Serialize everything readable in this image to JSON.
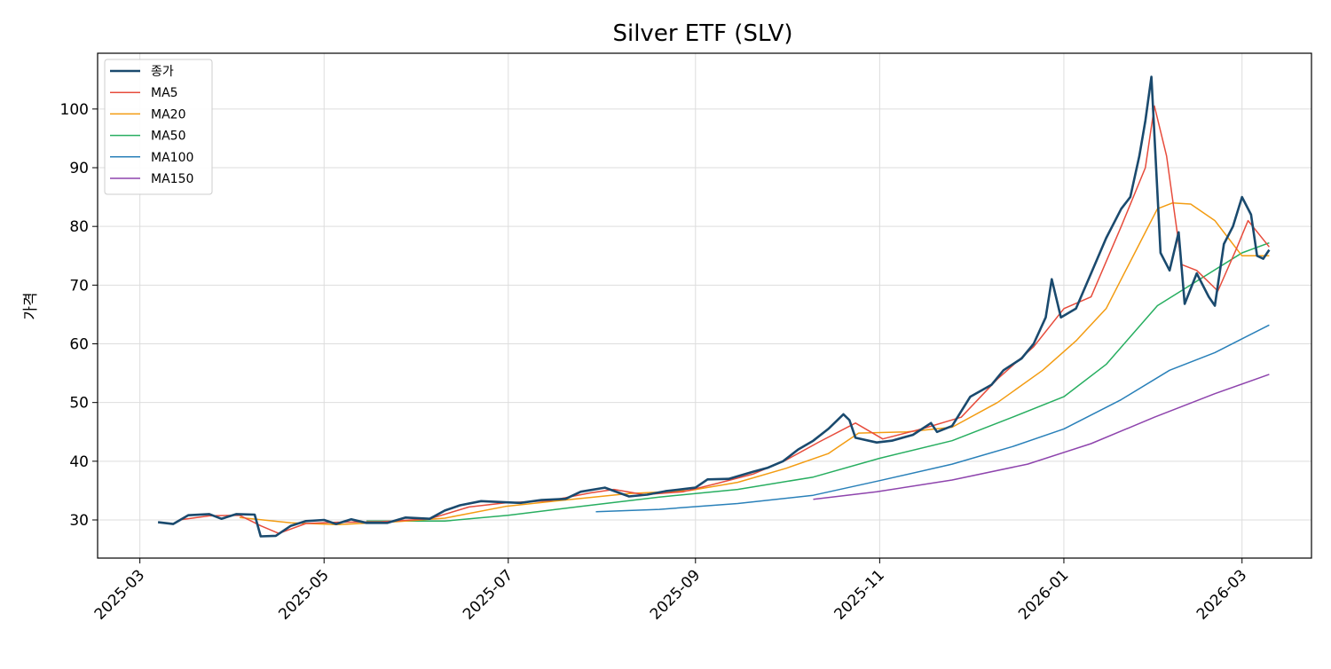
{
  "chart_data": {
    "type": "line",
    "title": "Silver ETF (SLV)",
    "xlabel": "",
    "ylabel": "가격",
    "x_ticks": [
      "2025-03",
      "2025-05",
      "2025-07",
      "2025-09",
      "2025-11",
      "2026-01",
      "2026-03"
    ],
    "y_ticks": [
      30,
      40,
      50,
      60,
      70,
      80,
      90,
      100
    ],
    "xlim": [
      "2025-02-15",
      "2026-03-24"
    ],
    "ylim": [
      23.5,
      109.5
    ],
    "grid": true,
    "legend_position": "top-left",
    "colors": {
      "close": "#1a4a6e",
      "ma5": "#e74c3c",
      "ma20": "#f39c12",
      "ma50": "#27ae60",
      "ma100": "#2980b9",
      "ma150": "#8e44ad",
      "grid": "#dddddd"
    },
    "series": [
      {
        "name": "종가",
        "key": "close",
        "points": [
          [
            "2025-03-07",
            29.6
          ],
          [
            "2025-03-12",
            29.3
          ],
          [
            "2025-03-17",
            30.8
          ],
          [
            "2025-03-24",
            31.0
          ],
          [
            "2025-03-28",
            30.2
          ],
          [
            "2025-04-02",
            31.0
          ],
          [
            "2025-04-08",
            30.9
          ],
          [
            "2025-04-10",
            27.2
          ],
          [
            "2025-04-15",
            27.3
          ],
          [
            "2025-04-20",
            29.0
          ],
          [
            "2025-04-25",
            29.8
          ],
          [
            "2025-05-01",
            30.0
          ],
          [
            "2025-05-05",
            29.3
          ],
          [
            "2025-05-10",
            30.1
          ],
          [
            "2025-05-15",
            29.5
          ],
          [
            "2025-05-22",
            29.5
          ],
          [
            "2025-05-28",
            30.4
          ],
          [
            "2025-06-05",
            30.2
          ],
          [
            "2025-06-10",
            31.6
          ],
          [
            "2025-06-15",
            32.5
          ],
          [
            "2025-06-22",
            33.2
          ],
          [
            "2025-06-30",
            33.0
          ],
          [
            "2025-07-05",
            32.9
          ],
          [
            "2025-07-12",
            33.4
          ],
          [
            "2025-07-20",
            33.6
          ],
          [
            "2025-07-25",
            34.8
          ],
          [
            "2025-08-02",
            35.5
          ],
          [
            "2025-08-10",
            34.0
          ],
          [
            "2025-08-16",
            34.3
          ],
          [
            "2025-08-22",
            34.9
          ],
          [
            "2025-09-01",
            35.5
          ],
          [
            "2025-09-05",
            36.9
          ],
          [
            "2025-09-12",
            37.0
          ],
          [
            "2025-09-20",
            38.2
          ],
          [
            "2025-09-25",
            38.9
          ],
          [
            "2025-09-30",
            40.0
          ],
          [
            "2025-10-05",
            42.0
          ],
          [
            "2025-10-10",
            43.5
          ],
          [
            "2025-10-15",
            45.5
          ],
          [
            "2025-10-20",
            48.0
          ],
          [
            "2025-10-22",
            47.0
          ],
          [
            "2025-10-24",
            44.0
          ],
          [
            "2025-10-31",
            43.2
          ],
          [
            "2025-11-05",
            43.5
          ],
          [
            "2025-11-12",
            44.5
          ],
          [
            "2025-11-18",
            46.5
          ],
          [
            "2025-11-20",
            45.0
          ],
          [
            "2025-11-25",
            46.0
          ],
          [
            "2025-12-01",
            51.0
          ],
          [
            "2025-12-08",
            53.0
          ],
          [
            "2025-12-12",
            55.5
          ],
          [
            "2025-12-18",
            57.5
          ],
          [
            "2025-12-22",
            60.0
          ],
          [
            "2025-12-26",
            64.5
          ],
          [
            "2025-12-28",
            71.0
          ],
          [
            "2025-12-31",
            64.5
          ],
          [
            "2026-01-05",
            66.0
          ],
          [
            "2026-01-10",
            72.0
          ],
          [
            "2026-01-15",
            78.0
          ],
          [
            "2026-01-20",
            83.0
          ],
          [
            "2026-01-23",
            85.0
          ],
          [
            "2026-01-26",
            92.0
          ],
          [
            "2026-01-28",
            98.0
          ],
          [
            "2026-01-30",
            105.5
          ],
          [
            "2026-02-02",
            75.5
          ],
          [
            "2026-02-05",
            72.5
          ],
          [
            "2026-02-08",
            79.0
          ],
          [
            "2026-02-10",
            66.8
          ],
          [
            "2026-02-14",
            72.0
          ],
          [
            "2026-02-18",
            68.0
          ],
          [
            "2026-02-20",
            66.5
          ],
          [
            "2026-02-23",
            77.0
          ],
          [
            "2026-02-26",
            80.0
          ],
          [
            "2026-03-01",
            85.0
          ],
          [
            "2026-03-04",
            82.0
          ],
          [
            "2026-03-06",
            75.0
          ],
          [
            "2026-03-08",
            74.5
          ],
          [
            "2026-03-10",
            76.0
          ]
        ]
      },
      {
        "name": "MA5",
        "key": "ma5",
        "points": [
          [
            "2025-03-14",
            30.0
          ],
          [
            "2025-03-24",
            30.7
          ],
          [
            "2025-04-03",
            30.8
          ],
          [
            "2025-04-10",
            29.0
          ],
          [
            "2025-04-16",
            27.7
          ],
          [
            "2025-04-25",
            29.4
          ],
          [
            "2025-05-05",
            29.6
          ],
          [
            "2025-05-20",
            29.7
          ],
          [
            "2025-06-05",
            30.2
          ],
          [
            "2025-06-18",
            32.2
          ],
          [
            "2025-06-30",
            32.9
          ],
          [
            "2025-07-15",
            33.3
          ],
          [
            "2025-07-28",
            34.6
          ],
          [
            "2025-08-05",
            35.2
          ],
          [
            "2025-08-15",
            34.3
          ],
          [
            "2025-08-28",
            34.8
          ],
          [
            "2025-09-08",
            36.2
          ],
          [
            "2025-09-20",
            37.8
          ],
          [
            "2025-10-01",
            40.2
          ],
          [
            "2025-10-12",
            43.3
          ],
          [
            "2025-10-24",
            46.5
          ],
          [
            "2025-11-02",
            43.8
          ],
          [
            "2025-11-15",
            45.5
          ],
          [
            "2025-11-28",
            47.5
          ],
          [
            "2025-12-10",
            54.0
          ],
          [
            "2025-12-22",
            59.5
          ],
          [
            "2026-01-01",
            66.0
          ],
          [
            "2026-01-10",
            68.0
          ],
          [
            "2026-01-20",
            80.0
          ],
          [
            "2026-01-28",
            90.0
          ],
          [
            "2026-01-31",
            100.5
          ],
          [
            "2026-02-04",
            92.0
          ],
          [
            "2026-02-09",
            73.5
          ],
          [
            "2026-02-14",
            72.5
          ],
          [
            "2026-02-21",
            69.0
          ],
          [
            "2026-02-27",
            76.0
          ],
          [
            "2026-03-03",
            81.0
          ],
          [
            "2026-03-10",
            76.5
          ]
        ]
      },
      {
        "name": "MA20",
        "key": "ma20",
        "points": [
          [
            "2025-04-03",
            30.4
          ],
          [
            "2025-04-20",
            29.5
          ],
          [
            "2025-05-05",
            29.2
          ],
          [
            "2025-05-25",
            29.7
          ],
          [
            "2025-06-10",
            30.3
          ],
          [
            "2025-06-30",
            32.3
          ],
          [
            "2025-07-20",
            33.4
          ],
          [
            "2025-08-10",
            34.5
          ],
          [
            "2025-08-30",
            35.0
          ],
          [
            "2025-09-15",
            36.4
          ],
          [
            "2025-10-01",
            38.8
          ],
          [
            "2025-10-15",
            41.3
          ],
          [
            "2025-10-25",
            44.8
          ],
          [
            "2025-11-10",
            45.0
          ],
          [
            "2025-11-25",
            45.8
          ],
          [
            "2025-12-10",
            50.0
          ],
          [
            "2025-12-25",
            55.5
          ],
          [
            "2026-01-05",
            60.5
          ],
          [
            "2026-01-15",
            66.0
          ],
          [
            "2026-01-25",
            76.0
          ],
          [
            "2026-02-01",
            83.0
          ],
          [
            "2026-02-06",
            84.0
          ],
          [
            "2026-02-12",
            83.8
          ],
          [
            "2026-02-20",
            81.0
          ],
          [
            "2026-03-01",
            75.0
          ],
          [
            "2026-03-10",
            75.0
          ]
        ]
      },
      {
        "name": "MA50",
        "key": "ma50",
        "points": [
          [
            "2025-05-15",
            29.8
          ],
          [
            "2025-06-10",
            29.8
          ],
          [
            "2025-07-01",
            30.8
          ],
          [
            "2025-07-25",
            32.3
          ],
          [
            "2025-08-20",
            33.9
          ],
          [
            "2025-09-15",
            35.2
          ],
          [
            "2025-10-10",
            37.3
          ],
          [
            "2025-11-01",
            40.5
          ],
          [
            "2025-11-25",
            43.5
          ],
          [
            "2025-12-15",
            47.5
          ],
          [
            "2026-01-01",
            51.0
          ],
          [
            "2026-01-15",
            56.5
          ],
          [
            "2026-02-01",
            66.5
          ],
          [
            "2026-02-15",
            71.0
          ],
          [
            "2026-03-01",
            75.5
          ],
          [
            "2026-03-10",
            77.2
          ]
        ]
      },
      {
        "name": "MA100",
        "key": "ma100",
        "points": [
          [
            "2025-07-30",
            31.4
          ],
          [
            "2025-08-20",
            31.8
          ],
          [
            "2025-09-15",
            32.8
          ],
          [
            "2025-10-10",
            34.2
          ],
          [
            "2025-11-01",
            36.7
          ],
          [
            "2025-11-25",
            39.5
          ],
          [
            "2025-12-15",
            42.5
          ],
          [
            "2026-01-01",
            45.5
          ],
          [
            "2026-01-20",
            50.5
          ],
          [
            "2026-02-05",
            55.5
          ],
          [
            "2026-02-20",
            58.5
          ],
          [
            "2026-03-10",
            63.2
          ]
        ]
      },
      {
        "name": "MA150",
        "key": "ma150",
        "points": [
          [
            "2025-10-10",
            33.5
          ],
          [
            "2025-10-31",
            34.8
          ],
          [
            "2025-11-25",
            36.8
          ],
          [
            "2025-12-20",
            39.5
          ],
          [
            "2026-01-10",
            43.0
          ],
          [
            "2026-01-31",
            47.5
          ],
          [
            "2026-02-20",
            51.5
          ],
          [
            "2026-03-10",
            54.8
          ]
        ]
      }
    ]
  }
}
